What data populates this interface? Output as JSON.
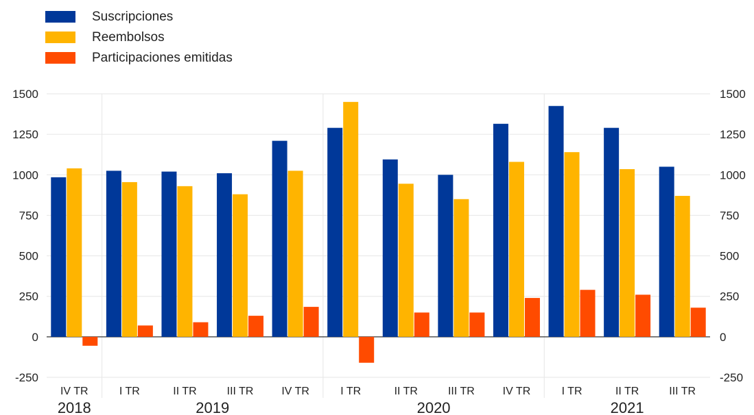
{
  "legend": [
    {
      "label": "Suscripciones",
      "color": "#003899"
    },
    {
      "label": "Reembolsos",
      "color": "#FFB400"
    },
    {
      "label": "Participaciones emitidas",
      "color": "#FF4B00"
    }
  ],
  "chart_data": {
    "type": "bar",
    "categories": [
      "IV TR",
      "I TR",
      "II TR",
      "III TR",
      "IV TR",
      "I TR",
      "II TR",
      "III TR",
      "IV TR",
      "I TR",
      "II TR",
      "III TR"
    ],
    "years": [
      {
        "label": "2018",
        "start": 0,
        "end": 0
      },
      {
        "label": "2019",
        "start": 1,
        "end": 4
      },
      {
        "label": "2020",
        "start": 5,
        "end": 8
      },
      {
        "label": "2021",
        "start": 9,
        "end": 11
      }
    ],
    "series": [
      {
        "name": "Suscripciones",
        "color": "#003899",
        "values": [
          985,
          1025,
          1020,
          1010,
          1210,
          1290,
          1095,
          1000,
          1315,
          1425,
          1290,
          1050
        ]
      },
      {
        "name": "Reembolsos",
        "color": "#FFB400",
        "values": [
          1040,
          955,
          930,
          880,
          1025,
          1450,
          945,
          850,
          1080,
          1140,
          1035,
          870
        ]
      },
      {
        "name": "Participaciones emitidas",
        "color": "#FF4B00",
        "values": [
          -55,
          70,
          90,
          130,
          185,
          -160,
          150,
          150,
          240,
          290,
          260,
          180
        ]
      }
    ],
    "yticks": [
      -250,
      0,
      250,
      500,
      750,
      1000,
      1250,
      1500
    ],
    "ylim": [
      -250,
      1500
    ],
    "grid": true,
    "right_axis": true,
    "legend_position": "top-left"
  }
}
